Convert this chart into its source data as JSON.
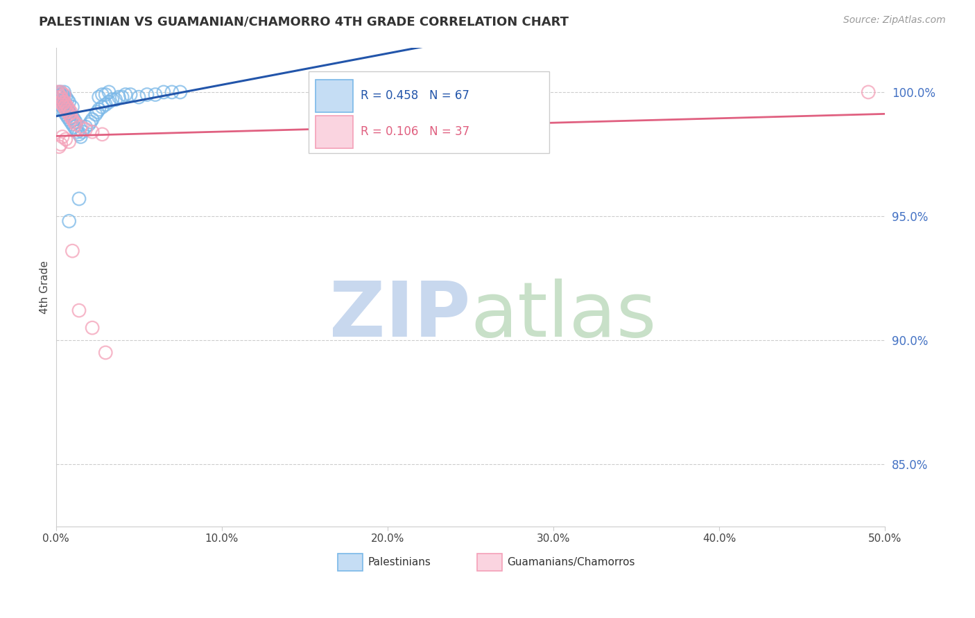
{
  "title": "PALESTINIAN VS GUAMANIAN/CHAMORRO 4TH GRADE CORRELATION CHART",
  "source": "Source: ZipAtlas.com",
  "ylabel": "4th Grade",
  "ytick_labels": [
    "85.0%",
    "90.0%",
    "95.0%",
    "100.0%"
  ],
  "ytick_values": [
    0.85,
    0.9,
    0.95,
    1.0
  ],
  "xtick_values": [
    0.0,
    0.1,
    0.2,
    0.3,
    0.4,
    0.5
  ],
  "xtick_labels": [
    "0.0%",
    "10.0%",
    "20.0%",
    "30.0%",
    "40.0%",
    "50.0%"
  ],
  "xlim": [
    0.0,
    0.5
  ],
  "ylim": [
    0.825,
    1.018
  ],
  "blue_R": 0.458,
  "blue_N": 67,
  "pink_R": 0.106,
  "pink_N": 37,
  "blue_color": "#7ab8e8",
  "pink_color": "#f4a0b8",
  "blue_line_color": "#2255aa",
  "pink_line_color": "#e06080",
  "legend_label_blue": "Palestinians",
  "legend_label_pink": "Guamanians/Chamorros",
  "blue_legend_patch_color": "#c5ddf4",
  "pink_legend_patch_color": "#fad4e0",
  "legend_border_blue": "#7ab8e8",
  "legend_border_pink": "#f4a0b8",
  "grid_color": "#cccccc",
  "spine_color": "#cccccc",
  "title_color": "#333333",
  "source_color": "#999999",
  "right_tick_color": "#4472c4",
  "watermark_zip_color": "#c8d8ee",
  "watermark_atlas_color": "#c8e0c8"
}
